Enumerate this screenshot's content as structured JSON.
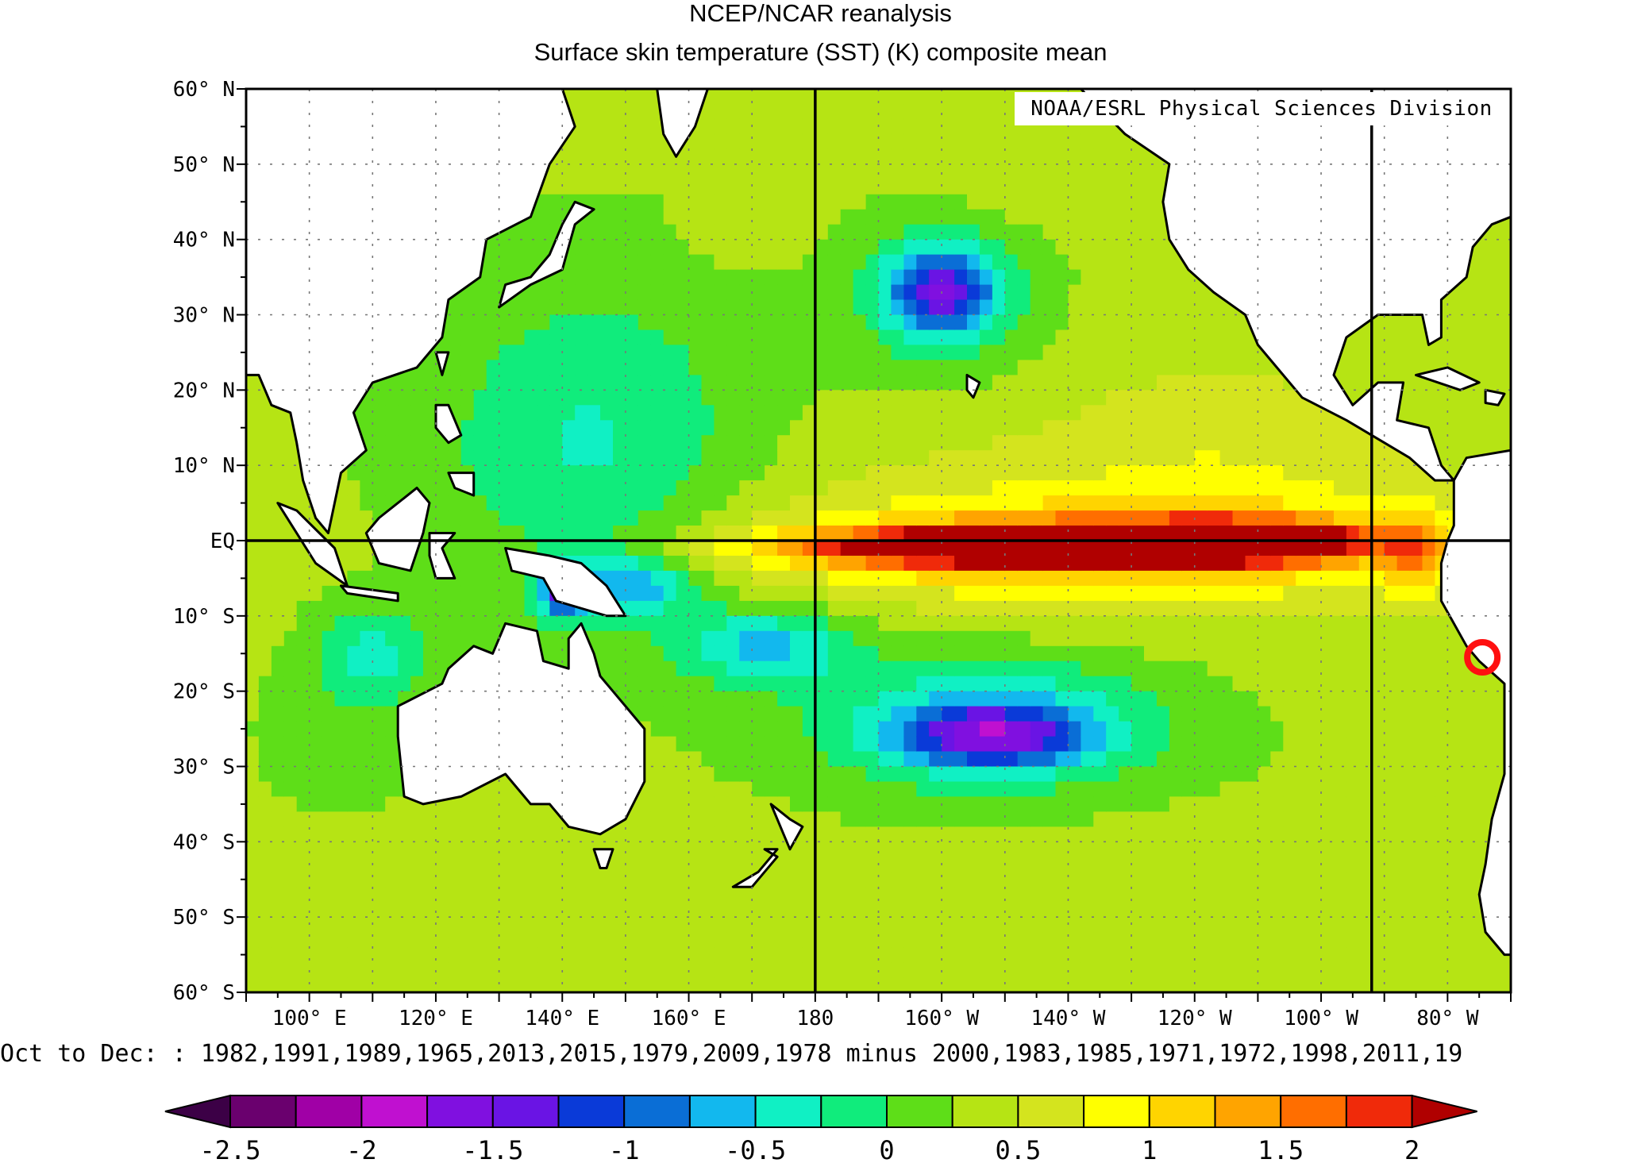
{
  "title": "NCEP/NCAR reanalysis",
  "subtitle": "Surface skin temperature (SST) (K) composite mean",
  "credit": "NOAA/ESRL Physical Sciences Division",
  "caption": "Oct to Dec: : 1982,1991,1989,1965,2013,2015,1979,2009,1978 minus 2000,1983,1985,1971,1972,1998,2011,19",
  "map": {
    "projection": "cylindrical",
    "lon_range_east": [
      90,
      290
    ],
    "lat_range": [
      -60,
      60
    ],
    "lat_labels": [
      {
        "lat": 60,
        "text": "60° N"
      },
      {
        "lat": 50,
        "text": "50° N"
      },
      {
        "lat": 40,
        "text": "40° N"
      },
      {
        "lat": 30,
        "text": "30° N"
      },
      {
        "lat": 20,
        "text": "20° N"
      },
      {
        "lat": 10,
        "text": "10° N"
      },
      {
        "lat": 0,
        "text": "EQ"
      },
      {
        "lat": -10,
        "text": "10° S"
      },
      {
        "lat": -20,
        "text": "20° S"
      },
      {
        "lat": -30,
        "text": "30° S"
      },
      {
        "lat": -40,
        "text": "40° S"
      },
      {
        "lat": -50,
        "text": "50° S"
      },
      {
        "lat": -60,
        "text": "60° S"
      }
    ],
    "lon_labels": [
      {
        "lon": 100,
        "text": "100° E"
      },
      {
        "lon": 120,
        "text": "120° E"
      },
      {
        "lon": 140,
        "text": "140° E"
      },
      {
        "lon": 160,
        "text": "160° E"
      },
      {
        "lon": 180,
        "text": "180"
      },
      {
        "lon": 200,
        "text": "160° W"
      },
      {
        "lon": 220,
        "text": "140° W"
      },
      {
        "lon": 240,
        "text": "120° W"
      },
      {
        "lon": 260,
        "text": "100° W"
      },
      {
        "lon": 280,
        "text": "80° W"
      }
    ],
    "reference_lines": {
      "lon": [
        180,
        268
      ],
      "lat": [
        0
      ]
    },
    "marker": {
      "lon": 285.5,
      "lat": -15.5,
      "shape": "circle",
      "color": "#ff1010"
    },
    "anomaly_field": {
      "background": 0.3,
      "features": [
        {
          "lon": 210,
          "lat": -1,
          "value": 1.9,
          "rx": 35,
          "ry": 2.3
        },
        {
          "lon": 230,
          "lat": 0,
          "value": 1.8,
          "rx": 28,
          "ry": 2.2
        },
        {
          "lon": 250,
          "lat": 0,
          "value": 1.5,
          "rx": 18,
          "ry": 2.8
        },
        {
          "lon": 222,
          "lat": -1,
          "value": 1.1,
          "rx": 55,
          "ry": 6
        },
        {
          "lon": 230,
          "lat": 2,
          "value": 0.7,
          "rx": 60,
          "ry": 14
        },
        {
          "lon": 245,
          "lat": 15,
          "value": 0.5,
          "rx": 25,
          "ry": 15
        },
        {
          "lon": 275,
          "lat": -2,
          "value": 1.0,
          "rx": 5,
          "ry": 6
        },
        {
          "lon": 200,
          "lat": 33,
          "value": -0.95,
          "rx": 8,
          "ry": 5
        },
        {
          "lon": 200,
          "lat": 33,
          "value": -0.35,
          "rx": 14,
          "ry": 10
        },
        {
          "lon": 208,
          "lat": -26,
          "value": -1.05,
          "rx": 14,
          "ry": 4
        },
        {
          "lon": 208,
          "lat": -24,
          "value": -0.55,
          "rx": 28,
          "ry": 9
        },
        {
          "lon": 172,
          "lat": -14,
          "value": -0.55,
          "rx": 14,
          "ry": 5
        },
        {
          "lon": 150,
          "lat": -6,
          "value": -0.6,
          "rx": 10,
          "ry": 4
        },
        {
          "lon": 140,
          "lat": -7,
          "value": -0.9,
          "rx": 4,
          "ry": 3
        },
        {
          "lon": 145,
          "lat": 12,
          "value": -0.3,
          "rx": 25,
          "ry": 22
        },
        {
          "lon": 210,
          "lat": 45,
          "value": 0.4,
          "rx": 18,
          "ry": 5
        },
        {
          "lon": 168,
          "lat": 40,
          "value": 0.4,
          "rx": 10,
          "ry": 4
        },
        {
          "lon": 238,
          "lat": -42,
          "value": 0.4,
          "rx": 20,
          "ry": 6
        },
        {
          "lon": 105,
          "lat": -25,
          "value": 0.1,
          "rx": 12,
          "ry": 10
        },
        {
          "lon": 110,
          "lat": -15,
          "value": -0.3,
          "rx": 8,
          "ry": 6
        }
      ]
    },
    "land": [
      {
        "name": "Asia",
        "pts": [
          [
            90,
            60
          ],
          [
            140,
            60
          ],
          [
            142,
            55
          ],
          [
            138,
            50
          ],
          [
            135,
            43
          ],
          [
            128,
            40
          ],
          [
            127,
            35
          ],
          [
            122,
            32
          ],
          [
            121,
            27
          ],
          [
            117,
            23
          ],
          [
            110,
            21
          ],
          [
            107,
            17
          ],
          [
            109,
            12
          ],
          [
            105,
            9
          ],
          [
            103,
            1
          ],
          [
            101,
            3
          ],
          [
            99,
            8
          ],
          [
            98,
            13
          ],
          [
            97,
            17
          ],
          [
            94,
            18
          ],
          [
            92,
            22
          ],
          [
            90,
            22
          ]
        ]
      },
      {
        "name": "Kamchatka",
        "pts": [
          [
            155,
            60
          ],
          [
            163,
            60
          ],
          [
            161,
            55
          ],
          [
            158,
            51
          ],
          [
            156,
            54
          ]
        ]
      },
      {
        "name": "Japan",
        "pts": [
          [
            130,
            31
          ],
          [
            135,
            34
          ],
          [
            140,
            36
          ],
          [
            141,
            39
          ],
          [
            142,
            42
          ],
          [
            145,
            44
          ],
          [
            142,
            45
          ],
          [
            140,
            42
          ],
          [
            138,
            38
          ],
          [
            135,
            35
          ],
          [
            131,
            34
          ]
        ]
      },
      {
        "name": "Luzon",
        "pts": [
          [
            120,
            18
          ],
          [
            122,
            18
          ],
          [
            124,
            14
          ],
          [
            122,
            13
          ],
          [
            120,
            15
          ]
        ]
      },
      {
        "name": "Mindanao",
        "pts": [
          [
            122,
            9
          ],
          [
            126,
            9
          ],
          [
            126,
            6
          ],
          [
            123,
            7
          ]
        ]
      },
      {
        "name": "Taiwan",
        "pts": [
          [
            120,
            25
          ],
          [
            122,
            25
          ],
          [
            121,
            22
          ]
        ]
      },
      {
        "name": "Sumatra",
        "pts": [
          [
            95,
            5
          ],
          [
            98,
            4
          ],
          [
            104,
            -1
          ],
          [
            106,
            -6
          ],
          [
            101,
            -3
          ]
        ]
      },
      {
        "name": "Java",
        "pts": [
          [
            105,
            -6
          ],
          [
            114,
            -7
          ],
          [
            114,
            -8
          ],
          [
            106,
            -7
          ]
        ]
      },
      {
        "name": "Borneo",
        "pts": [
          [
            109,
            1
          ],
          [
            111,
            3
          ],
          [
            117,
            7
          ],
          [
            119,
            5
          ],
          [
            118,
            1
          ],
          [
            116,
            -4
          ],
          [
            111,
            -3
          ]
        ]
      },
      {
        "name": "Sulawesi",
        "pts": [
          [
            119,
            1
          ],
          [
            123,
            1
          ],
          [
            121,
            -1
          ],
          [
            123,
            -5
          ],
          [
            120,
            -5
          ],
          [
            119,
            -2
          ]
        ]
      },
      {
        "name": "New Guinea",
        "pts": [
          [
            131,
            -1
          ],
          [
            138,
            -2
          ],
          [
            143,
            -3
          ],
          [
            147,
            -6
          ],
          [
            150,
            -10
          ],
          [
            147,
            -10
          ],
          [
            143,
            -9
          ],
          [
            139,
            -8
          ],
          [
            137,
            -5
          ],
          [
            132,
            -4
          ]
        ]
      },
      {
        "name": "Australia",
        "pts": [
          [
            114,
            -22
          ],
          [
            114,
            -26
          ],
          [
            115,
            -34
          ],
          [
            118,
            -35
          ],
          [
            124,
            -34
          ],
          [
            131,
            -31
          ],
          [
            135,
            -35
          ],
          [
            138,
            -35
          ],
          [
            141,
            -38
          ],
          [
            146,
            -39
          ],
          [
            150,
            -37
          ],
          [
            153,
            -32
          ],
          [
            153,
            -25
          ],
          [
            150,
            -22
          ],
          [
            146,
            -18
          ],
          [
            145,
            -15
          ],
          [
            143,
            -11
          ],
          [
            141,
            -13
          ],
          [
            141,
            -17
          ],
          [
            137,
            -16
          ],
          [
            136,
            -12
          ],
          [
            131,
            -11
          ],
          [
            129,
            -15
          ],
          [
            126,
            -14
          ],
          [
            122,
            -17
          ],
          [
            121,
            -19
          ]
        ]
      },
      {
        "name": "Tasmania",
        "pts": [
          [
            145,
            -41
          ],
          [
            148,
            -41
          ],
          [
            147,
            -43.5
          ],
          [
            146,
            -43.5
          ]
        ]
      },
      {
        "name": "NZ North",
        "pts": [
          [
            173,
            -35
          ],
          [
            176,
            -37
          ],
          [
            178,
            -38
          ],
          [
            176,
            -41
          ],
          [
            175,
            -39
          ]
        ]
      },
      {
        "name": "NZ South",
        "pts": [
          [
            172,
            -41
          ],
          [
            174,
            -41
          ],
          [
            171,
            -44
          ],
          [
            167,
            -46
          ],
          [
            170,
            -46
          ],
          [
            174,
            -42
          ]
        ]
      },
      {
        "name": "North America",
        "pts": [
          [
            193,
            60
          ],
          [
            290,
            60
          ],
          [
            290,
            43
          ],
          [
            287,
            42
          ],
          [
            284,
            39
          ],
          [
            283,
            35
          ],
          [
            279,
            32
          ],
          [
            279,
            27
          ],
          [
            277,
            26
          ],
          [
            276,
            30
          ],
          [
            269,
            30
          ],
          [
            264,
            27
          ],
          [
            262,
            22
          ],
          [
            265,
            18
          ],
          [
            269,
            21
          ],
          [
            273,
            21
          ],
          [
            272,
            16
          ],
          [
            277,
            15
          ],
          [
            279,
            10
          ],
          [
            281,
            8
          ],
          [
            278,
            8
          ],
          [
            274,
            11
          ],
          [
            270,
            13
          ],
          [
            264,
            16
          ],
          [
            257,
            19
          ],
          [
            254,
            22
          ],
          [
            250,
            26
          ],
          [
            248,
            30
          ],
          [
            243,
            33
          ],
          [
            239,
            36
          ],
          [
            236,
            40
          ],
          [
            235,
            45
          ],
          [
            236,
            50
          ],
          [
            229,
            54
          ],
          [
            222,
            60
          ]
        ]
      },
      {
        "name": "South America",
        "pts": [
          [
            281,
            8
          ],
          [
            283,
            11
          ],
          [
            290,
            12
          ],
          [
            290,
            -55
          ],
          [
            289,
            -55
          ],
          [
            286,
            -52
          ],
          [
            285,
            -47
          ],
          [
            286,
            -43
          ],
          [
            287,
            -37
          ],
          [
            289,
            -31
          ],
          [
            289,
            -19
          ],
          [
            285,
            -16
          ],
          [
            283,
            -14
          ],
          [
            279,
            -8
          ],
          [
            279,
            -3
          ],
          [
            280,
            0
          ],
          [
            281,
            2
          ]
        ]
      },
      {
        "name": "Cuba",
        "pts": [
          [
            275,
            22
          ],
          [
            280,
            23
          ],
          [
            285,
            21
          ],
          [
            282,
            20
          ]
        ]
      },
      {
        "name": "Hispaniola",
        "pts": [
          [
            286,
            20
          ],
          [
            289,
            19.5
          ],
          [
            288,
            18
          ],
          [
            286,
            18.3
          ]
        ]
      },
      {
        "name": "Hawaii",
        "pts": [
          [
            204,
            22
          ],
          [
            206,
            21
          ],
          [
            205,
            19
          ],
          [
            204,
            20
          ]
        ]
      }
    ]
  },
  "colorbar": {
    "ticks": [
      "-2.5",
      "-2",
      "-1.5",
      "-1",
      "-0.5",
      "0",
      "0.5",
      "1",
      "1.5",
      "2"
    ],
    "levels": [
      -2.5,
      -2.25,
      -2,
      -1.75,
      -1.5,
      -1.25,
      -1,
      -0.75,
      -0.5,
      -0.25,
      0,
      0.25,
      0.5,
      0.75,
      1,
      1.25,
      1.5,
      1.75,
      2
    ],
    "colors": [
      "#3c0046",
      "#6a006e",
      "#a000a6",
      "#c010d0",
      "#8010e0",
      "#6a14e4",
      "#0a3ad8",
      "#0a6ed6",
      "#12b8ee",
      "#10f0c4",
      "#10ec7c",
      "#5ede18",
      "#b6e414",
      "#d4e41e",
      "#ffff00",
      "#ffd400",
      "#ffa400",
      "#ff6e00",
      "#f02a0a",
      "#b00000"
    ]
  }
}
